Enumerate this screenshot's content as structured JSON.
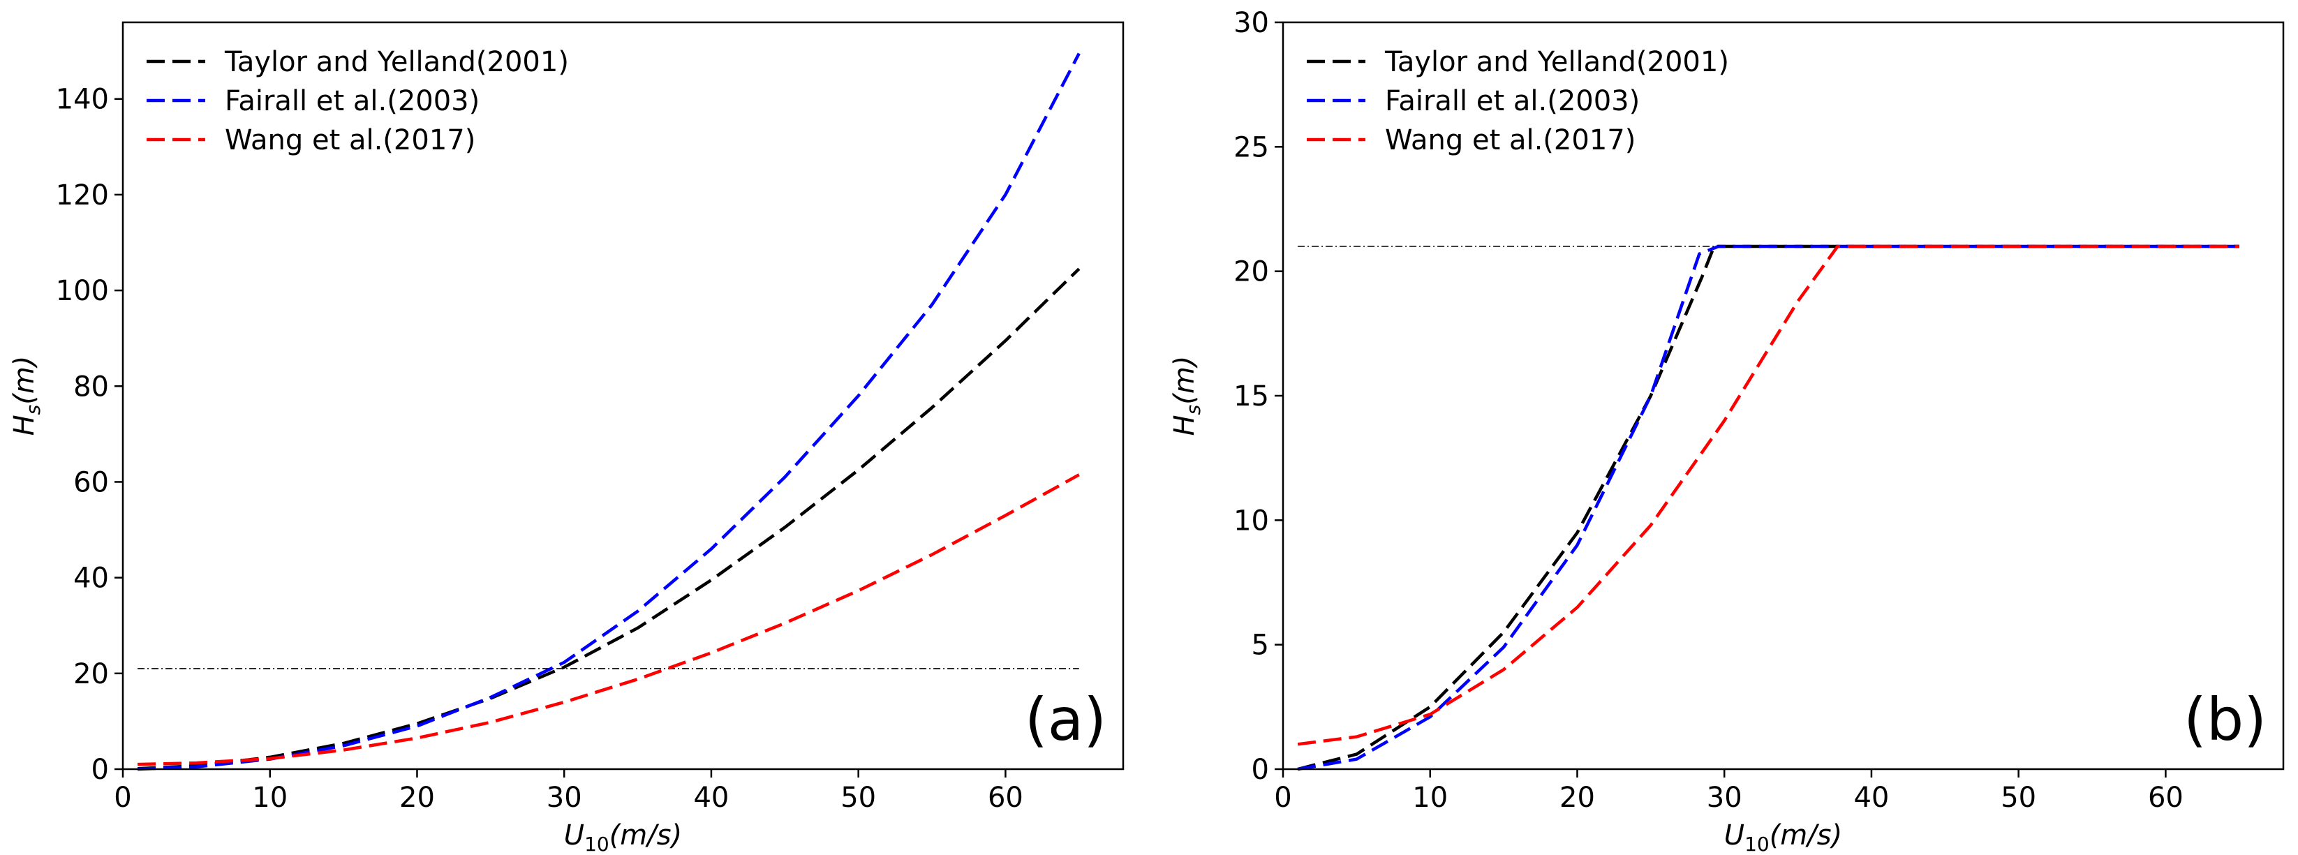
{
  "chart_data": [
    {
      "type": "line",
      "panel_label": "(a)",
      "xlabel": "U10(m/s)",
      "ylabel": "Hs(m)",
      "xlim": [
        0,
        68
      ],
      "ylim": [
        0,
        156
      ],
      "xticks": [
        0,
        10,
        20,
        30,
        40,
        50,
        60
      ],
      "yticks": [
        0,
        20,
        40,
        60,
        80,
        100,
        120,
        140
      ],
      "legend_position": "top-left",
      "reference_line": {
        "y": 21,
        "x": [
          1,
          65
        ],
        "color": "#000000",
        "style": "dash-dot"
      },
      "series": [
        {
          "name": "Taylor and Yelland(2001)",
          "color": "#000000",
          "x": [
            1,
            5,
            10,
            15,
            20,
            25,
            30,
            35,
            40,
            45,
            50,
            55,
            60,
            65
          ],
          "y": [
            0.1,
            0.7,
            2.5,
            5.4,
            9.5,
            14.8,
            21.3,
            29.5,
            39.5,
            50.5,
            62.5,
            75.5,
            89.5,
            104.5
          ]
        },
        {
          "name": "Fairall et al.(2003)",
          "color": "#0000ff",
          "x": [
            1,
            5,
            10,
            15,
            20,
            25,
            30,
            35,
            40,
            45,
            50,
            55,
            60,
            65
          ],
          "y": [
            0.0,
            0.5,
            2.1,
            4.9,
            9.0,
            15.0,
            22.3,
            33.0,
            46.0,
            61.0,
            78.0,
            97.0,
            120.0,
            149.5
          ]
        },
        {
          "name": "Wang et al.(2017)",
          "color": "#ff0000",
          "x": [
            1,
            5,
            10,
            15,
            20,
            25,
            30,
            35,
            40,
            45,
            50,
            55,
            60,
            65
          ],
          "y": [
            1.0,
            1.3,
            2.2,
            4.0,
            6.5,
            9.8,
            14.0,
            18.8,
            24.3,
            30.5,
            37.3,
            44.8,
            53.0,
            61.5
          ]
        }
      ]
    },
    {
      "type": "line",
      "panel_label": "(b)",
      "xlabel": "U10(m/s)",
      "ylabel": "Hs(m)",
      "xlim": [
        0,
        68
      ],
      "ylim": [
        0,
        30
      ],
      "xticks": [
        0,
        10,
        20,
        30,
        40,
        50,
        60
      ],
      "yticks": [
        0,
        5,
        10,
        15,
        20,
        25,
        30
      ],
      "legend_position": "top-left",
      "reference_line": {
        "y": 21,
        "x": [
          1,
          65
        ],
        "color": "#000000",
        "style": "dash-dot"
      },
      "series": [
        {
          "name": "Taylor and Yelland(2001)",
          "color": "#000000",
          "x": [
            1,
            5,
            10,
            15,
            20,
            25,
            28.5,
            29.3,
            30,
            35,
            40,
            45,
            50,
            55,
            60,
            65
          ],
          "y": [
            0.0,
            0.6,
            2.5,
            5.5,
            9.5,
            15.0,
            19.8,
            21.0,
            21.0,
            21.0,
            21.0,
            21.0,
            21.0,
            21.0,
            21.0,
            21.0
          ]
        },
        {
          "name": "Fairall et al.(2003)",
          "color": "#0000ff",
          "x": [
            1,
            5,
            10,
            15,
            20,
            25,
            28.3,
            29.6,
            35,
            40,
            45,
            50,
            55,
            60,
            65
          ],
          "y": [
            0.0,
            0.4,
            2.1,
            4.9,
            9.0,
            15.0,
            20.7,
            21.0,
            21.0,
            21.0,
            21.0,
            21.0,
            21.0,
            21.0,
            21.0
          ]
        },
        {
          "name": "Wang et al.(2017)",
          "color": "#ff0000",
          "x": [
            1,
            5,
            10,
            15,
            20,
            25,
            30,
            35,
            37.7,
            40,
            45,
            50,
            55,
            60,
            65
          ],
          "y": [
            1.0,
            1.3,
            2.2,
            4.0,
            6.5,
            9.8,
            14.0,
            18.8,
            21.0,
            21.0,
            21.0,
            21.0,
            21.0,
            21.0,
            21.0
          ]
        }
      ]
    }
  ]
}
